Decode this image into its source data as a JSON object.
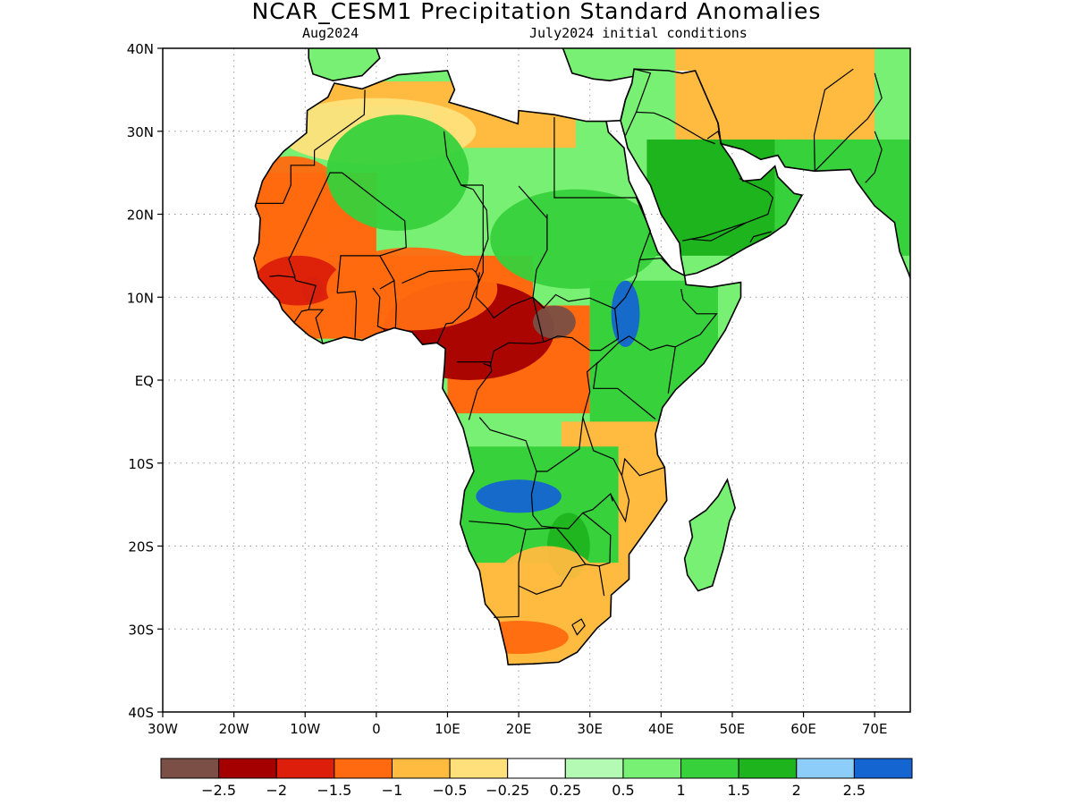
{
  "header": {
    "title": "NCAR_CESM1 Precipitation Standard Anomalies",
    "valid_month": "Aug2024",
    "initial_conditions": "July2024 initial conditions"
  },
  "map": {
    "region": "Africa",
    "lon_range": [
      -30,
      75
    ],
    "lat_range": [
      -40,
      40
    ],
    "lat_ticks": [
      {
        "value": 40,
        "label": "40N"
      },
      {
        "value": 30,
        "label": "30N"
      },
      {
        "value": 20,
        "label": "20N"
      },
      {
        "value": 10,
        "label": "10N"
      },
      {
        "value": 0,
        "label": "EQ"
      },
      {
        "value": -10,
        "label": "10S"
      },
      {
        "value": -20,
        "label": "20S"
      },
      {
        "value": -30,
        "label": "30S"
      },
      {
        "value": -40,
        "label": "40S"
      }
    ],
    "lon_ticks": [
      {
        "value": -30,
        "label": "30W"
      },
      {
        "value": -20,
        "label": "20W"
      },
      {
        "value": -10,
        "label": "10W"
      },
      {
        "value": 0,
        "label": "0"
      },
      {
        "value": 10,
        "label": "10E"
      },
      {
        "value": 20,
        "label": "20E"
      },
      {
        "value": 30,
        "label": "30E"
      },
      {
        "value": 40,
        "label": "40E"
      },
      {
        "value": 50,
        "label": "50E"
      },
      {
        "value": 60,
        "label": "60E"
      },
      {
        "value": 70,
        "label": "70E"
      }
    ],
    "grid": "dotted",
    "anomaly_regions": [
      {
        "level": "-2",
        "lon": 13,
        "lat": 6,
        "rx": 12,
        "ry": 6
      },
      {
        "level": "-2.5",
        "lon": 25,
        "lat": 7,
        "rx": 3,
        "ry": 2
      },
      {
        "level": "-2.5",
        "lon": -9,
        "lat": 11,
        "rx": 1.5,
        "ry": 1.5
      },
      {
        "level": "-1.5",
        "lon": -11,
        "lat": 12,
        "rx": 6,
        "ry": 3
      },
      {
        "level": "-1",
        "lon": -12,
        "lat": 21,
        "rx": 8,
        "ry": 6
      },
      {
        "level": "-1",
        "lon": 5,
        "lat": 11,
        "rx": 12,
        "ry": 5
      },
      {
        "level": "-0.25",
        "lon": 0,
        "lat": 30,
        "rx": 14,
        "ry": 4
      },
      {
        "level": "1",
        "lon": 3,
        "lat": 25,
        "rx": 10,
        "ry": 7
      },
      {
        "level": "1",
        "lon": 28,
        "lat": 17,
        "rx": 12,
        "ry": 6
      },
      {
        "level": "1.5",
        "lon": 46,
        "lat": 22,
        "rx": 6,
        "ry": 5
      },
      {
        "level": "2.5",
        "lon": 35,
        "lat": 8,
        "rx": 2,
        "ry": 4
      },
      {
        "level": "2.5",
        "lon": 20,
        "lat": -14,
        "rx": 6,
        "ry": 2
      },
      {
        "level": "1.5",
        "lon": 27,
        "lat": -20,
        "rx": 3,
        "ry": 4
      },
      {
        "level": "-0.5",
        "lon": 24,
        "lat": -26,
        "rx": 8,
        "ry": 6
      },
      {
        "level": "-1",
        "lon": 20,
        "lat": -31,
        "rx": 7,
        "ry": 2
      }
    ]
  },
  "colorbar": {
    "colors": [
      "#7b4f45",
      "#a50000",
      "#dc1e0a",
      "#ff6a10",
      "#ffba40",
      "#ffe07b",
      "#ffffff",
      "#b4fab4",
      "#78f073",
      "#37d13c",
      "#1eb41e",
      "#8ccdfa",
      "#1464d2"
    ],
    "labels": [
      "-2.5",
      "-2",
      "-1.5",
      "-1",
      "-0.5",
      "-0.25",
      "0.25",
      "0.5",
      "1",
      "1.5",
      "2",
      "2.5"
    ]
  }
}
